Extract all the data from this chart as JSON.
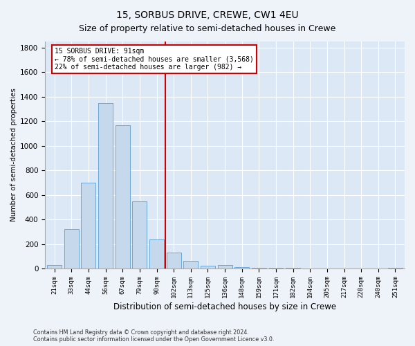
{
  "title": "15, SORBUS DRIVE, CREWE, CW1 4EU",
  "subtitle": "Size of property relative to semi-detached houses in Crewe",
  "xlabel": "Distribution of semi-detached houses by size in Crewe",
  "ylabel": "Number of semi-detached properties",
  "categories": [
    "21sqm",
    "33sqm",
    "44sqm",
    "56sqm",
    "67sqm",
    "79sqm",
    "90sqm",
    "102sqm",
    "113sqm",
    "125sqm",
    "136sqm",
    "148sqm",
    "159sqm",
    "171sqm",
    "182sqm",
    "194sqm",
    "205sqm",
    "217sqm",
    "228sqm",
    "240sqm",
    "251sqm"
  ],
  "values": [
    30,
    320,
    700,
    1350,
    1170,
    550,
    240,
    130,
    60,
    25,
    30,
    12,
    8,
    6,
    4,
    3,
    3,
    2,
    2,
    2,
    4
  ],
  "bar_color": "#c5d8ec",
  "bar_edge_color": "#5a9fd4",
  "vline_color": "#cc0000",
  "vline_pos": 6.5,
  "ann_line1": "15 SORBUS DRIVE: 91sqm",
  "ann_line2": "← 78% of semi-detached houses are smaller (3,568)",
  "ann_line3": "22% of semi-detached houses are larger (982) →",
  "ylim_max": 1850,
  "yticks": [
    0,
    200,
    400,
    600,
    800,
    1000,
    1200,
    1400,
    1600,
    1800
  ],
  "footer1": "Contains HM Land Registry data © Crown copyright and database right 2024.",
  "footer2": "Contains public sector information licensed under the Open Government Licence v3.0.",
  "bg_color": "#edf3f8",
  "plot_bg_color": "#dce8f5",
  "grid_color": "#ffffff",
  "title_fontsize": 10,
  "subtitle_fontsize": 9
}
